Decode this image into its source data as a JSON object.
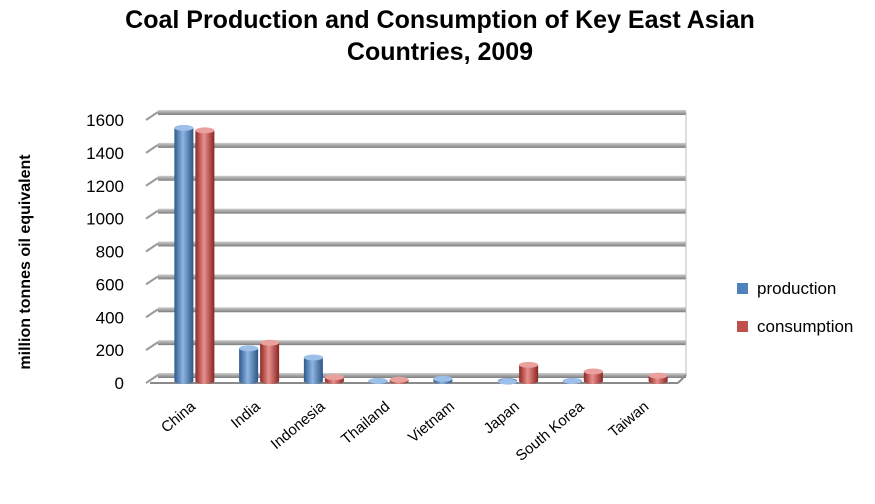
{
  "chart_data": {
    "type": "bar",
    "title_lines": [
      "Coal Production and Consumption of Key East Asian",
      "Countries, 2009"
    ],
    "xlabel": "",
    "ylabel": "million tonnes oil equivalent",
    "categories": [
      "China",
      "India",
      "Indonesia",
      "Thailand",
      "Vietnam",
      "Japan",
      "South Korea",
      "Taiwan"
    ],
    "series": [
      {
        "name": "production",
        "color": "#4f81bd",
        "values": [
          1552,
          211,
          155,
          13,
          25,
          8,
          12,
          0
        ]
      },
      {
        "name": "consumption",
        "color": "#c0504d",
        "values": [
          1537,
          245,
          35,
          20,
          0,
          110,
          70,
          45
        ]
      }
    ],
    "ylim": [
      0,
      1600
    ],
    "yticks": [
      0,
      200,
      400,
      600,
      800,
      1000,
      1200,
      1400,
      1600
    ],
    "grid": true,
    "legend_position": "right",
    "style": "3d-clustered-cylinder"
  }
}
